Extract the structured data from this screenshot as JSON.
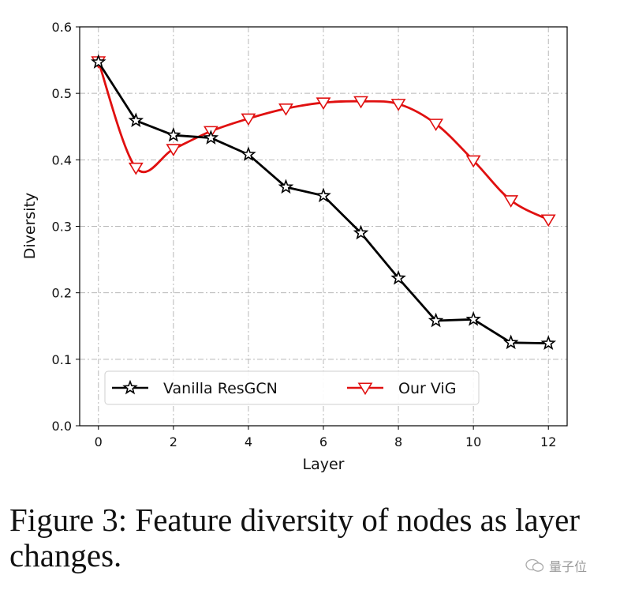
{
  "chart_data": {
    "type": "line",
    "xlabel": "Layer",
    "ylabel": "Diversity",
    "xlim": [
      -0.5,
      12.5
    ],
    "ylim": [
      0.0,
      0.6
    ],
    "xticks": [
      0,
      2,
      4,
      6,
      8,
      10,
      12
    ],
    "xtick_labels": [
      "0",
      "2",
      "4",
      "6",
      "8",
      "10",
      "12"
    ],
    "yticks": [
      0.0,
      0.1,
      0.2,
      0.3,
      0.4,
      0.5,
      0.6
    ],
    "ytick_labels": [
      "0.0",
      "0.1",
      "0.2",
      "0.3",
      "0.4",
      "0.5",
      "0.6"
    ],
    "grid": true,
    "legend_position": "lower-center",
    "x": [
      0,
      1,
      2,
      3,
      4,
      5,
      6,
      7,
      8,
      9,
      10,
      11,
      12
    ],
    "series": [
      {
        "name": "Vanilla ResGCN",
        "color": "#000000",
        "marker": "star",
        "values": [
          0.547,
          0.459,
          0.437,
          0.433,
          0.408,
          0.359,
          0.346,
          0.29,
          0.222,
          0.158,
          0.16,
          0.125,
          0.124
        ]
      },
      {
        "name": "Our ViG",
        "color": "#e01010",
        "marker": "triangle-down",
        "values": [
          0.548,
          0.388,
          0.416,
          0.443,
          0.462,
          0.477,
          0.486,
          0.488,
          0.484,
          0.454,
          0.399,
          0.339,
          0.31
        ]
      }
    ]
  },
  "caption": "Figure 3: Feature diversity of nodes as layer changes.",
  "watermark": "量子位"
}
